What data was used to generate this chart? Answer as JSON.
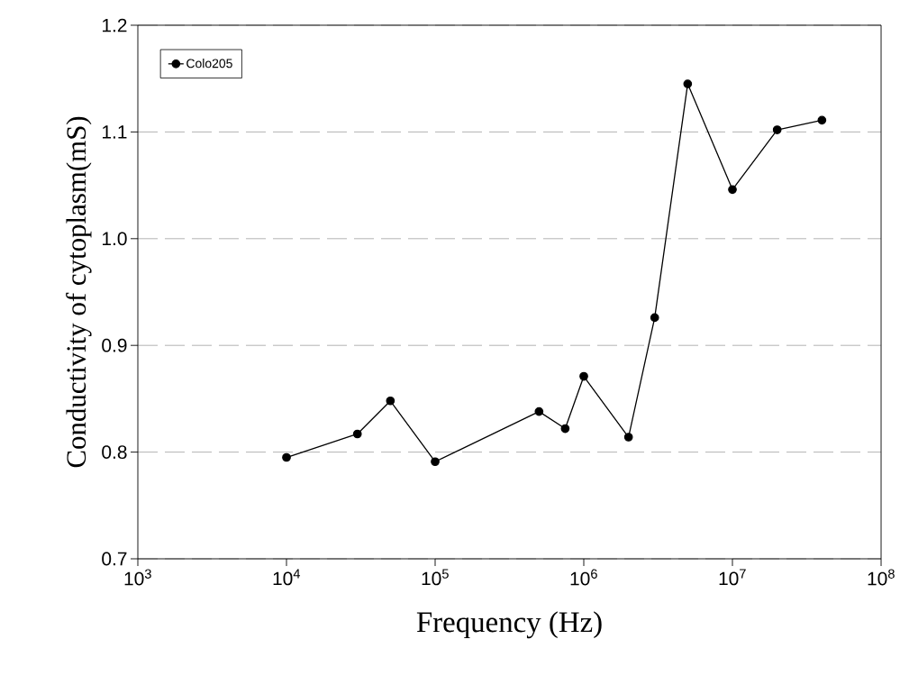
{
  "chart_data": {
    "type": "line",
    "xlabel": "Frequency (Hz)",
    "ylabel": "Conductivity of cytoplasm(mS)",
    "log": "x",
    "xlim": [
      1000,
      100000000
    ],
    "ylim": [
      0.7,
      1.2
    ],
    "xticks": [
      {
        "value": 1000,
        "label": "10$^{3}$"
      },
      {
        "value": 10000,
        "label": "10$^{4}$"
      },
      {
        "value": 100000,
        "label": "10$^{5}$"
      },
      {
        "value": 1000000,
        "label": "10$^{6}$"
      },
      {
        "value": 10000000,
        "label": "10$^{7}$"
      },
      {
        "value": 100000000,
        "label": "10$^{8}$"
      }
    ],
    "yticks": [
      0.7,
      0.8,
      0.9,
      {
        "value": 1,
        "label": "1.0"
      },
      1.1,
      1.2
    ],
    "grid": "y",
    "legend": "top left",
    "marker": "circle",
    "line_style": "solid",
    "x": [
      10000,
      30000,
      50000,
      100000,
      500000,
      750000,
      1000000,
      2000000,
      3000000,
      5000000,
      10000000,
      20000000,
      40000000
    ],
    "series": [
      {
        "name": "Colo205",
        "color": "#000000",
        "values": [
          0.795,
          0.817,
          0.848,
          0.791,
          0.838,
          0.822,
          0.871,
          0.814,
          0.926,
          1.145,
          1.046,
          1.102,
          1.111
        ]
      }
    ]
  }
}
